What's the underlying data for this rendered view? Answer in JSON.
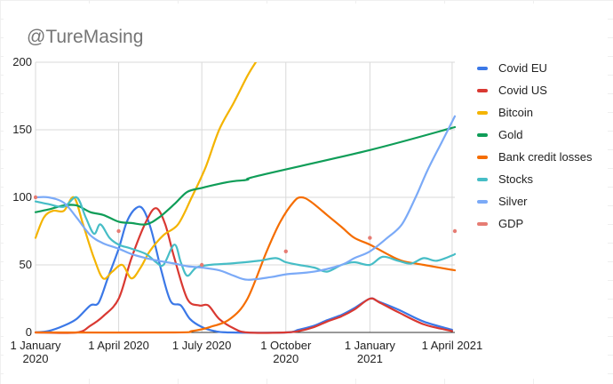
{
  "chart_data": {
    "type": "line",
    "title": "@TureMasing",
    "x_ticks": [
      {
        "date": "2020-01-01",
        "lines": [
          "1 January",
          "2020"
        ]
      },
      {
        "date": "2020-04-01",
        "lines": [
          "1 April 2020"
        ]
      },
      {
        "date": "2020-07-01",
        "lines": [
          "1 July 2020"
        ]
      },
      {
        "date": "2020-10-01",
        "lines": [
          "1 October",
          "2020"
        ]
      },
      {
        "date": "2021-01-01",
        "lines": [
          "1 January",
          "2021"
        ]
      },
      {
        "date": "2021-04-01",
        "lines": [
          "1 April 2021"
        ]
      }
    ],
    "xlim": [
      "2020-01-01",
      "2021-04-04"
    ],
    "ylim": [
      0,
      200
    ],
    "y_ticks": [
      "0",
      "50",
      "100",
      "150",
      "200"
    ],
    "grid": true,
    "legend_position": "right",
    "series": [
      {
        "name": "Covid EU",
        "color": "#3b78e7",
        "points": [
          [
            "2020-01-01",
            0
          ],
          [
            "2020-01-15",
            1
          ],
          [
            "2020-02-01",
            5
          ],
          [
            "2020-02-15",
            10
          ],
          [
            "2020-03-01",
            20
          ],
          [
            "2020-03-10",
            22
          ],
          [
            "2020-03-20",
            40
          ],
          [
            "2020-04-01",
            62
          ],
          [
            "2020-04-10",
            82
          ],
          [
            "2020-04-20",
            92
          ],
          [
            "2020-04-28",
            91
          ],
          [
            "2020-05-07",
            75
          ],
          [
            "2020-05-18",
            45
          ],
          [
            "2020-05-28",
            23
          ],
          [
            "2020-06-08",
            20
          ],
          [
            "2020-06-18",
            10
          ],
          [
            "2020-07-01",
            4
          ],
          [
            "2020-07-15",
            1
          ],
          [
            "2020-08-01",
            0
          ],
          [
            "2020-10-01",
            0
          ],
          [
            "2020-10-15",
            2
          ],
          [
            "2020-11-01",
            5
          ],
          [
            "2020-11-15",
            9
          ],
          [
            "2020-12-01",
            13
          ],
          [
            "2020-12-15",
            18
          ],
          [
            "2021-01-01",
            25
          ],
          [
            "2021-01-10",
            23
          ],
          [
            "2021-02-01",
            17
          ],
          [
            "2021-03-01",
            8
          ],
          [
            "2021-04-01",
            2
          ]
        ]
      },
      {
        "name": "Covid US",
        "color": "#d93932",
        "points": [
          [
            "2020-01-01",
            0
          ],
          [
            "2020-02-15",
            0
          ],
          [
            "2020-03-01",
            5
          ],
          [
            "2020-03-15",
            12
          ],
          [
            "2020-04-01",
            25
          ],
          [
            "2020-04-15",
            55
          ],
          [
            "2020-05-01",
            82
          ],
          [
            "2020-05-12",
            92
          ],
          [
            "2020-05-22",
            80
          ],
          [
            "2020-06-01",
            55
          ],
          [
            "2020-06-15",
            25
          ],
          [
            "2020-06-28",
            20
          ],
          [
            "2020-07-08",
            20
          ],
          [
            "2020-07-20",
            10
          ],
          [
            "2020-08-05",
            3
          ],
          [
            "2020-08-20",
            0
          ],
          [
            "2020-10-01",
            0
          ],
          [
            "2020-10-15",
            1
          ],
          [
            "2020-11-01",
            4
          ],
          [
            "2020-11-15",
            8
          ],
          [
            "2020-12-01",
            12
          ],
          [
            "2020-12-15",
            17
          ],
          [
            "2021-01-01",
            25
          ],
          [
            "2021-01-12",
            22
          ],
          [
            "2021-02-01",
            15
          ],
          [
            "2021-03-01",
            6
          ],
          [
            "2021-04-01",
            1
          ]
        ]
      },
      {
        "name": "Bitcoin",
        "color": "#f4b400",
        "points": [
          [
            "2020-01-01",
            70
          ],
          [
            "2020-01-10",
            85
          ],
          [
            "2020-01-20",
            90
          ],
          [
            "2020-02-01",
            90
          ],
          [
            "2020-02-12",
            100
          ],
          [
            "2020-02-22",
            80
          ],
          [
            "2020-03-05",
            55
          ],
          [
            "2020-03-15",
            40
          ],
          [
            "2020-03-25",
            45
          ],
          [
            "2020-04-05",
            50
          ],
          [
            "2020-04-15",
            40
          ],
          [
            "2020-04-25",
            48
          ],
          [
            "2020-05-05",
            60
          ],
          [
            "2020-05-20",
            72
          ],
          [
            "2020-06-05",
            80
          ],
          [
            "2020-06-20",
            100
          ],
          [
            "2020-07-05",
            122
          ],
          [
            "2020-07-20",
            150
          ],
          [
            "2020-08-05",
            170
          ],
          [
            "2020-08-20",
            190
          ],
          [
            "2020-08-30",
            201
          ]
        ]
      },
      {
        "name": "Gold",
        "color": "#0f9d58",
        "points": [
          [
            "2020-01-01",
            89
          ],
          [
            "2020-01-15",
            91
          ],
          [
            "2020-02-01",
            94
          ],
          [
            "2020-02-15",
            94
          ],
          [
            "2020-03-01",
            89
          ],
          [
            "2020-03-15",
            87
          ],
          [
            "2020-04-01",
            82
          ],
          [
            "2020-04-15",
            81
          ],
          [
            "2020-05-01",
            80
          ],
          [
            "2020-05-15",
            85
          ],
          [
            "2020-06-01",
            95
          ],
          [
            "2020-06-15",
            104
          ],
          [
            "2020-07-01",
            107
          ],
          [
            "2020-07-20",
            110
          ],
          [
            "2020-08-05",
            112
          ],
          [
            "2020-08-20",
            113
          ],
          [
            "2020-09-01",
            116
          ],
          [
            "2021-01-01",
            135
          ],
          [
            "2021-04-04",
            152
          ]
        ]
      },
      {
        "name": "Bank credit losses",
        "color": "#f56d00",
        "points": [
          [
            "2020-01-01",
            0
          ],
          [
            "2020-06-01",
            0
          ],
          [
            "2020-06-20",
            1
          ],
          [
            "2020-07-10",
            4
          ],
          [
            "2020-08-01",
            10
          ],
          [
            "2020-08-20",
            25
          ],
          [
            "2020-09-10",
            60
          ],
          [
            "2020-09-25",
            82
          ],
          [
            "2020-10-10",
            97
          ],
          [
            "2020-10-18",
            100
          ],
          [
            "2020-10-28",
            97
          ],
          [
            "2020-11-15",
            87
          ],
          [
            "2020-12-01",
            78
          ],
          [
            "2020-12-15",
            70
          ],
          [
            "2021-01-01",
            65
          ],
          [
            "2021-01-20",
            58
          ],
          [
            "2021-02-05",
            53
          ],
          [
            "2021-03-01",
            50
          ],
          [
            "2021-04-04",
            46
          ]
        ]
      },
      {
        "name": "Stocks",
        "color": "#46bdc6",
        "points": [
          [
            "2020-01-01",
            97
          ],
          [
            "2020-01-15",
            95
          ],
          [
            "2020-02-01",
            93
          ],
          [
            "2020-02-15",
            100
          ],
          [
            "2020-02-25",
            85
          ],
          [
            "2020-03-05",
            73
          ],
          [
            "2020-03-12",
            80
          ],
          [
            "2020-03-22",
            70
          ],
          [
            "2020-04-01",
            65
          ],
          [
            "2020-04-15",
            62
          ],
          [
            "2020-05-01",
            58
          ],
          [
            "2020-05-12",
            52
          ],
          [
            "2020-05-20",
            50
          ],
          [
            "2020-06-01",
            65
          ],
          [
            "2020-06-08",
            52
          ],
          [
            "2020-06-15",
            42
          ],
          [
            "2020-06-25",
            48
          ],
          [
            "2020-07-10",
            50
          ],
          [
            "2020-08-01",
            51
          ],
          [
            "2020-09-01",
            53
          ],
          [
            "2020-09-20",
            55
          ],
          [
            "2020-10-01",
            52
          ],
          [
            "2020-10-15",
            50
          ],
          [
            "2020-11-01",
            48
          ],
          [
            "2020-11-15",
            45
          ],
          [
            "2020-12-01",
            50
          ],
          [
            "2020-12-15",
            52
          ],
          [
            "2021-01-01",
            50
          ],
          [
            "2021-01-15",
            56
          ],
          [
            "2021-02-01",
            53
          ],
          [
            "2021-02-15",
            51
          ],
          [
            "2021-03-01",
            55
          ],
          [
            "2021-03-15",
            53
          ],
          [
            "2021-04-01",
            57
          ],
          [
            "2021-04-04",
            58
          ]
        ]
      },
      {
        "name": "Silver",
        "color": "#7baaf7",
        "points": [
          [
            "2020-01-01",
            100
          ],
          [
            "2020-01-15",
            100
          ],
          [
            "2020-02-01",
            96
          ],
          [
            "2020-02-15",
            85
          ],
          [
            "2020-03-01",
            72
          ],
          [
            "2020-03-15",
            66
          ],
          [
            "2020-04-01",
            62
          ],
          [
            "2020-04-15",
            58
          ],
          [
            "2020-05-01",
            55
          ],
          [
            "2020-05-15",
            53
          ],
          [
            "2020-06-01",
            51
          ],
          [
            "2020-06-15",
            49
          ],
          [
            "2020-07-01",
            48
          ],
          [
            "2020-07-20",
            46
          ],
          [
            "2020-08-05",
            42
          ],
          [
            "2020-08-20",
            39
          ],
          [
            "2020-09-15",
            41
          ],
          [
            "2020-10-01",
            43
          ],
          [
            "2020-11-01",
            45
          ],
          [
            "2020-12-01",
            50
          ],
          [
            "2020-12-15",
            55
          ],
          [
            "2021-01-01",
            60
          ],
          [
            "2021-01-20",
            70
          ],
          [
            "2021-02-05",
            80
          ],
          [
            "2021-02-20",
            100
          ],
          [
            "2021-03-05",
            120
          ],
          [
            "2021-03-20",
            140
          ],
          [
            "2021-04-04",
            160
          ]
        ]
      },
      {
        "name": "GDP",
        "color": "#e67c73",
        "type": "scatter",
        "points": [
          [
            "2020-01-01",
            100
          ],
          [
            "2020-04-01",
            75
          ],
          [
            "2020-07-01",
            50
          ],
          [
            "2020-10-01",
            60
          ],
          [
            "2021-01-01",
            70
          ],
          [
            "2021-04-04",
            75
          ]
        ]
      }
    ]
  }
}
